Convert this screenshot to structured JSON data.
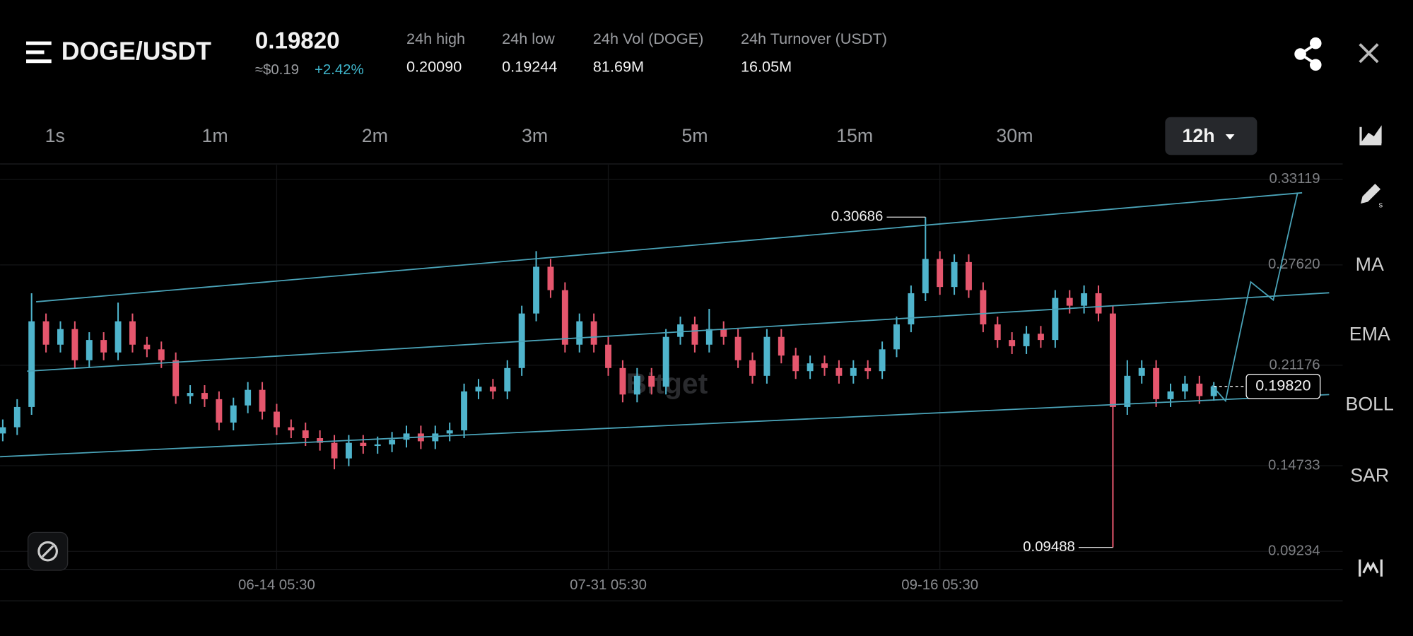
{
  "header": {
    "pair": "DOGE/USDT",
    "price": "0.19820",
    "usd_price": "≈$0.19",
    "change": "+2.42%",
    "stats": [
      {
        "label": "24h high",
        "value": "0.20090"
      },
      {
        "label": "24h low",
        "value": "0.19244"
      },
      {
        "label": "24h Vol (DOGE)",
        "value": "81.69M"
      },
      {
        "label": "24h Turnover (USDT)",
        "value": "16.05M"
      }
    ]
  },
  "timeframes": [
    "1s",
    "1m",
    "2m",
    "3m",
    "5m",
    "15m",
    "30m"
  ],
  "selected_timeframe": "12h",
  "tools": [
    "MA",
    "EMA",
    "BOLL",
    "SAR"
  ],
  "chart_data": {
    "type": "candlestick",
    "watermark": "Bitget",
    "up_color": "#4fb4cc",
    "down_color": "#e5566d",
    "ylim": [
      0.0808,
      0.3404
    ],
    "yticks": [
      0.33119,
      {
        "value": 0.2762,
        "label": "0.27620"
      },
      0.21176,
      0.14733,
      0.09234
    ],
    "xlim": [
      -0.1875,
      92
    ],
    "xticks": [
      {
        "value": 19,
        "label": "06-14 05:30"
      },
      {
        "value": 42,
        "label": "07-31 05:30"
      },
      {
        "value": 65,
        "label": "09-16 05:30"
      }
    ],
    "max_label": 0.30686,
    "min_label": 0.09488,
    "last_price": {
      "value": 0.1982,
      "label": "0.19820"
    },
    "candles": [
      [
        0.168,
        0.177,
        0.163,
        0.172
      ],
      [
        0.172,
        0.19,
        0.167,
        0.185
      ],
      [
        0.185,
        0.258,
        0.18,
        0.24
      ],
      [
        0.24,
        0.245,
        0.22,
        0.225
      ],
      [
        0.225,
        0.24,
        0.22,
        0.235
      ],
      [
        0.235,
        0.24,
        0.21,
        0.215
      ],
      [
        0.215,
        0.233,
        0.21,
        0.228
      ],
      [
        0.228,
        0.233,
        0.215,
        0.22
      ],
      [
        0.22,
        0.252,
        0.215,
        0.24
      ],
      [
        0.24,
        0.245,
        0.22,
        0.225
      ],
      [
        0.225,
        0.23,
        0.217,
        0.222
      ],
      [
        0.222,
        0.227,
        0.21,
        0.215
      ],
      [
        0.215,
        0.22,
        0.187,
        0.192
      ],
      [
        0.192,
        0.199,
        0.187,
        0.194
      ],
      [
        0.194,
        0.199,
        0.185,
        0.19
      ],
      [
        0.19,
        0.195,
        0.17,
        0.175
      ],
      [
        0.175,
        0.191,
        0.17,
        0.186
      ],
      [
        0.186,
        0.201,
        0.181,
        0.196
      ],
      [
        0.196,
        0.201,
        0.177,
        0.182
      ],
      [
        0.182,
        0.187,
        0.167,
        0.172
      ],
      [
        0.172,
        0.177,
        0.165,
        0.17
      ],
      [
        0.17,
        0.175,
        0.16,
        0.165
      ],
      [
        0.165,
        0.17,
        0.157,
        0.162
      ],
      [
        0.162,
        0.167,
        0.145,
        0.152
      ],
      [
        0.152,
        0.167,
        0.147,
        0.162
      ],
      [
        0.162,
        0.167,
        0.155,
        0.16
      ],
      [
        0.16,
        0.166,
        0.155,
        0.161
      ],
      [
        0.161,
        0.169,
        0.156,
        0.164
      ],
      [
        0.164,
        0.173,
        0.159,
        0.168
      ],
      [
        0.168,
        0.173,
        0.158,
        0.163
      ],
      [
        0.163,
        0.173,
        0.158,
        0.168
      ],
      [
        0.168,
        0.175,
        0.163,
        0.17
      ],
      [
        0.17,
        0.2,
        0.165,
        0.195
      ],
      [
        0.195,
        0.203,
        0.19,
        0.198
      ],
      [
        0.198,
        0.203,
        0.19,
        0.195
      ],
      [
        0.195,
        0.215,
        0.19,
        0.21
      ],
      [
        0.21,
        0.25,
        0.205,
        0.245
      ],
      [
        0.245,
        0.285,
        0.24,
        0.275
      ],
      [
        0.275,
        0.28,
        0.255,
        0.26
      ],
      [
        0.26,
        0.265,
        0.22,
        0.225
      ],
      [
        0.225,
        0.245,
        0.22,
        0.24
      ],
      [
        0.24,
        0.245,
        0.22,
        0.225
      ],
      [
        0.225,
        0.23,
        0.205,
        0.21
      ],
      [
        0.21,
        0.215,
        0.188,
        0.193
      ],
      [
        0.193,
        0.21,
        0.188,
        0.205
      ],
      [
        0.205,
        0.21,
        0.193,
        0.198
      ],
      [
        0.198,
        0.235,
        0.193,
        0.23
      ],
      [
        0.23,
        0.243,
        0.225,
        0.238
      ],
      [
        0.238,
        0.243,
        0.22,
        0.225
      ],
      [
        0.225,
        0.248,
        0.22,
        0.235
      ],
      [
        0.235,
        0.24,
        0.225,
        0.23
      ],
      [
        0.23,
        0.235,
        0.21,
        0.215
      ],
      [
        0.215,
        0.22,
        0.2,
        0.205
      ],
      [
        0.205,
        0.235,
        0.2,
        0.23
      ],
      [
        0.23,
        0.235,
        0.213,
        0.218
      ],
      [
        0.218,
        0.223,
        0.203,
        0.208
      ],
      [
        0.208,
        0.218,
        0.203,
        0.213
      ],
      [
        0.213,
        0.218,
        0.205,
        0.21
      ],
      [
        0.21,
        0.215,
        0.2,
        0.205
      ],
      [
        0.205,
        0.215,
        0.2,
        0.21
      ],
      [
        0.21,
        0.215,
        0.203,
        0.208
      ],
      [
        0.208,
        0.227,
        0.203,
        0.222
      ],
      [
        0.222,
        0.243,
        0.217,
        0.238
      ],
      [
        0.238,
        0.263,
        0.233,
        0.258
      ],
      [
        0.258,
        0.30686,
        0.253,
        0.28
      ],
      [
        0.28,
        0.285,
        0.257,
        0.262
      ],
      [
        0.262,
        0.283,
        0.257,
        0.278
      ],
      [
        0.278,
        0.283,
        0.255,
        0.26
      ],
      [
        0.26,
        0.265,
        0.233,
        0.238
      ],
      [
        0.238,
        0.243,
        0.223,
        0.228
      ],
      [
        0.228,
        0.233,
        0.219,
        0.224
      ],
      [
        0.224,
        0.237,
        0.219,
        0.232
      ],
      [
        0.232,
        0.237,
        0.223,
        0.228
      ],
      [
        0.228,
        0.26,
        0.223,
        0.255
      ],
      [
        0.255,
        0.26,
        0.245,
        0.25
      ],
      [
        0.25,
        0.263,
        0.245,
        0.258
      ],
      [
        0.258,
        0.263,
        0.24,
        0.245
      ],
      [
        0.245,
        0.25,
        0.09488,
        0.185
      ],
      [
        0.185,
        0.215,
        0.18,
        0.205
      ],
      [
        0.205,
        0.215,
        0.2,
        0.21
      ],
      [
        0.21,
        0.215,
        0.185,
        0.19
      ],
      [
        0.19,
        0.2,
        0.185,
        0.195
      ],
      [
        0.195,
        0.205,
        0.19,
        0.2
      ],
      [
        0.2,
        0.205,
        0.187,
        0.192
      ],
      [
        0.192,
        0.201,
        0.189,
        0.1982
      ]
    ]
  }
}
